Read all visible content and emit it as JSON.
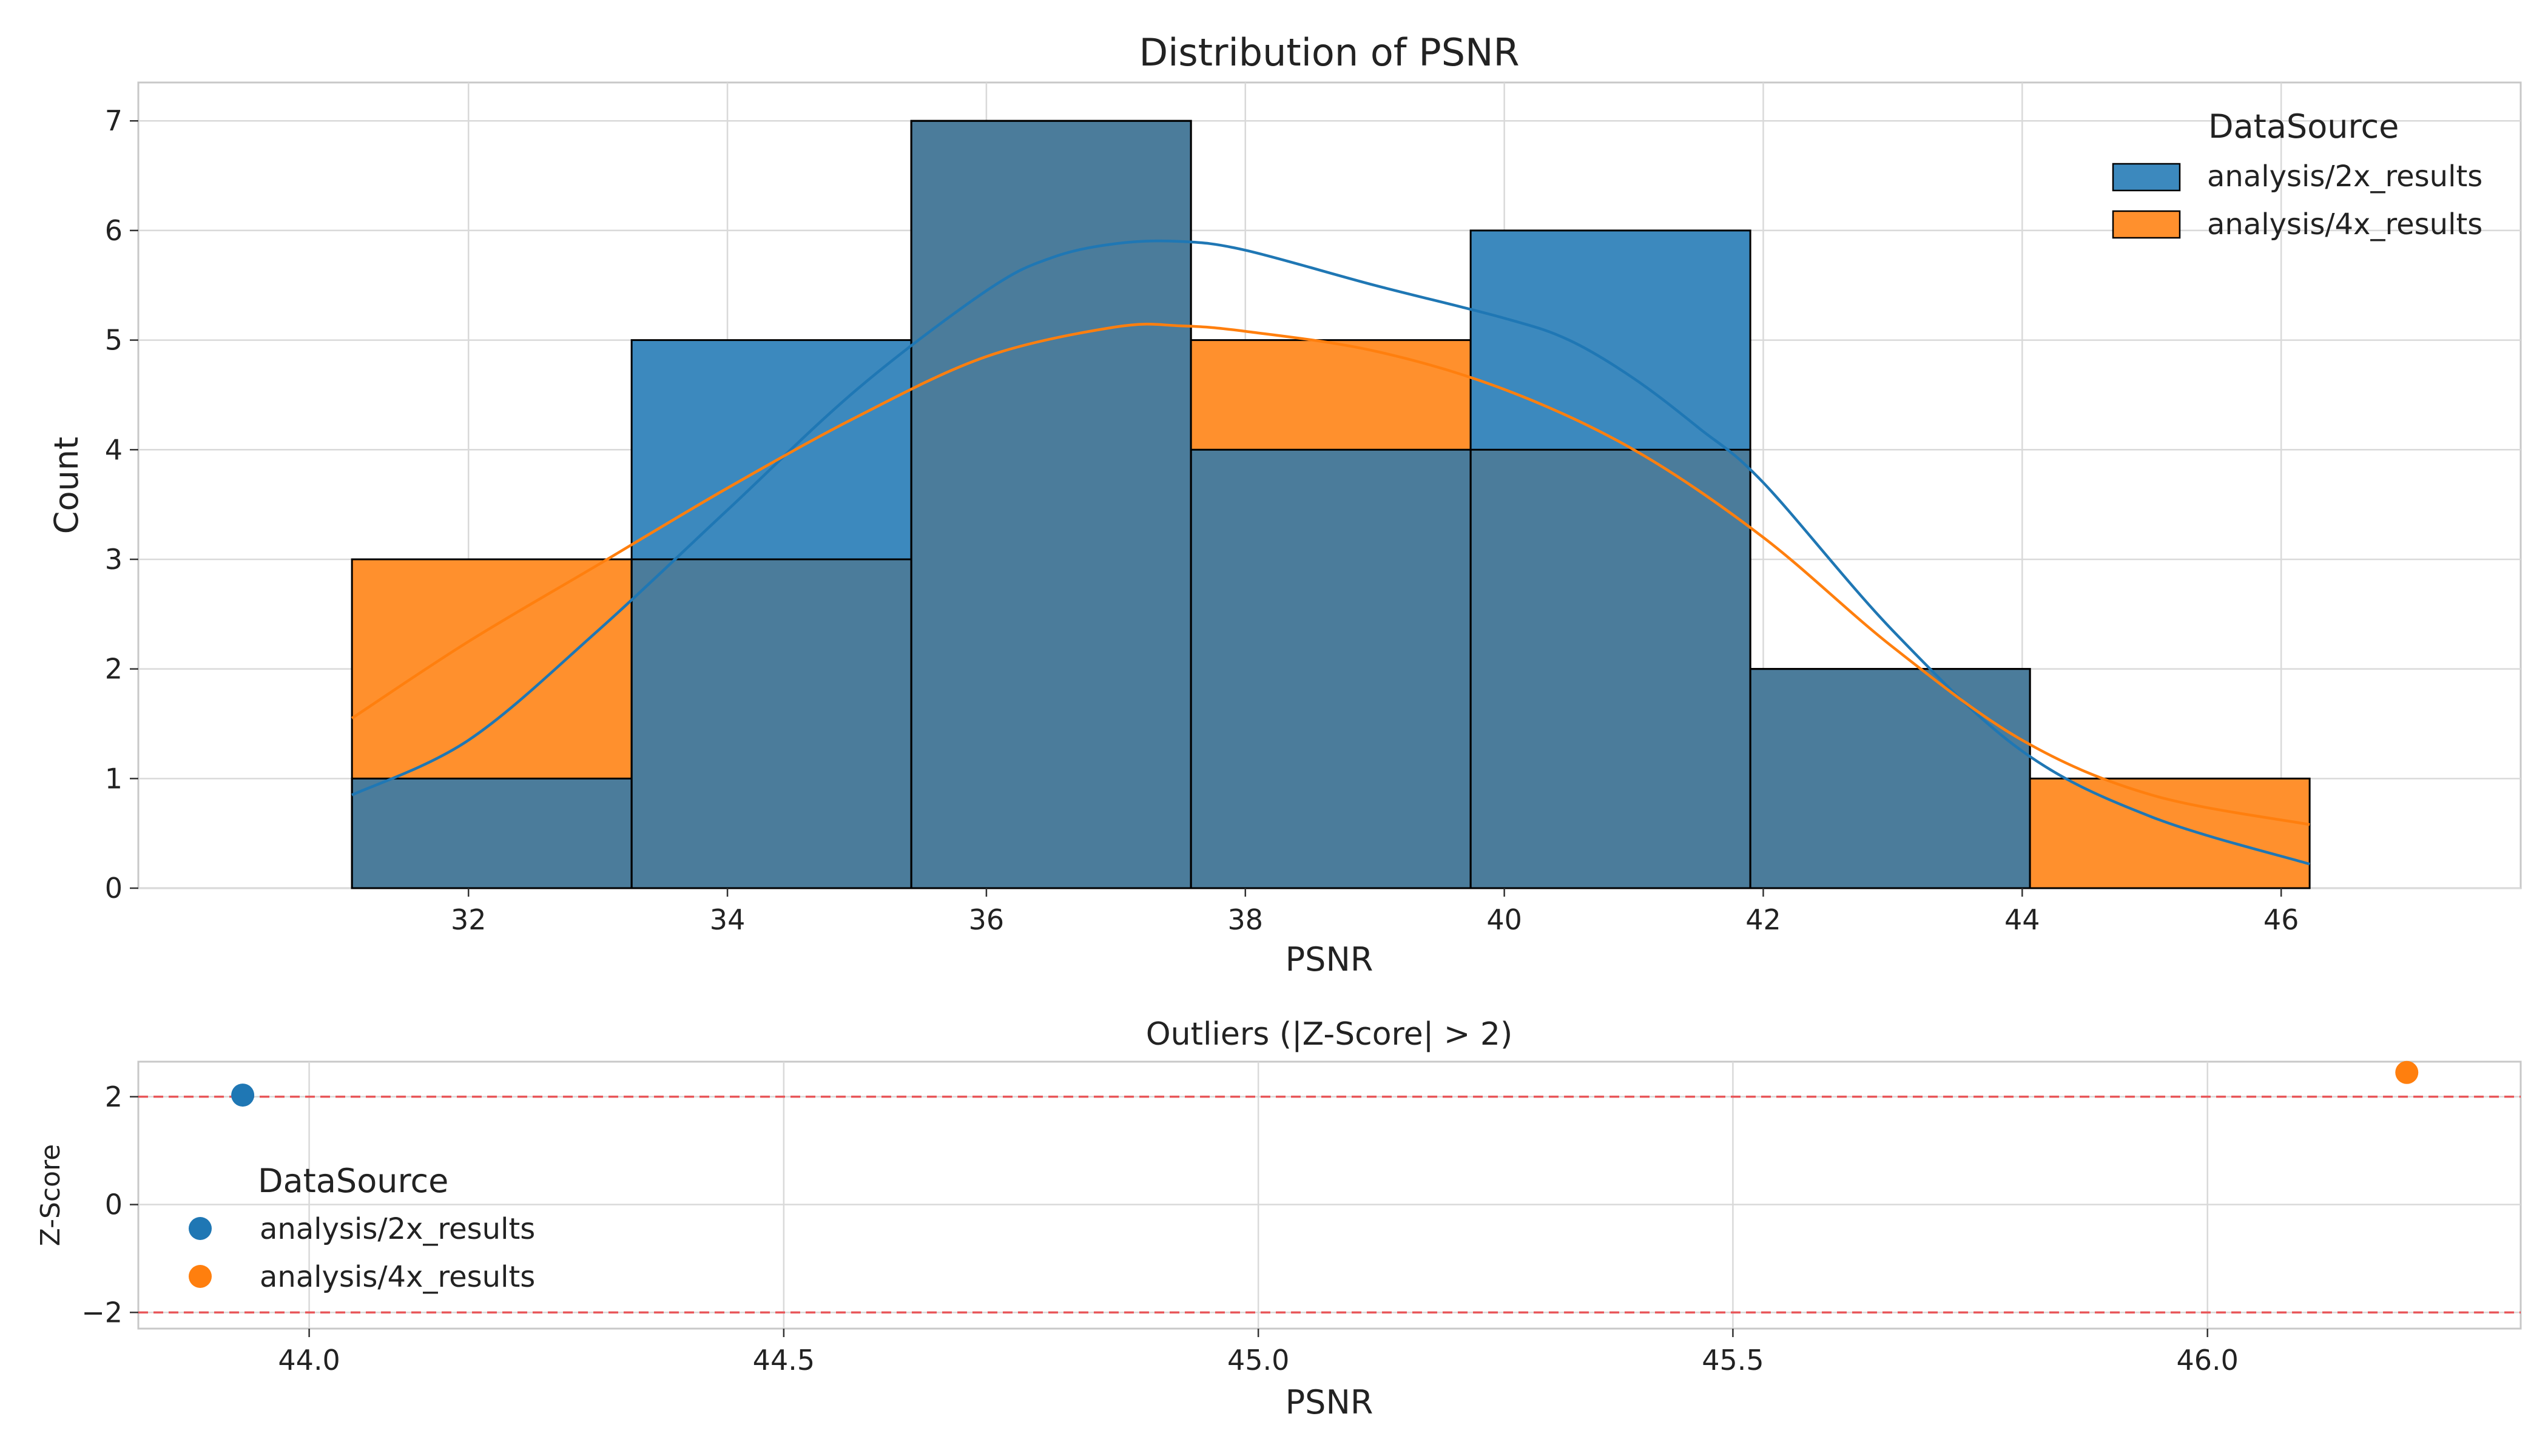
{
  "chart_data": [
    {
      "type": "bar",
      "subtype": "histogram-with-kde",
      "title": "Distribution of PSNR",
      "xlabel": "PSNR",
      "ylabel": "Count",
      "xlim": [
        29.45,
        47.85
      ],
      "ylim": [
        0,
        7.35
      ],
      "xticks": [
        32,
        34,
        36,
        38,
        40,
        42,
        44,
        46
      ],
      "yticks": [
        0,
        1,
        2,
        3,
        4,
        5,
        6,
        7
      ],
      "grid": true,
      "bin_edges": [
        31.1,
        33.26,
        35.42,
        37.58,
        39.74,
        41.9,
        44.06,
        46.22
      ],
      "legend": {
        "title": "DataSource",
        "placement": "upper right"
      },
      "series": [
        {
          "name": "analysis/2x_results",
          "color": "#1f77b4",
          "counts": [
            1,
            5,
            7,
            4,
            6,
            2,
            0
          ],
          "kde": {
            "x": [
              31.1,
              32.0,
              33.0,
              34.0,
              35.0,
              36.0,
              36.5,
              37.0,
              37.5,
              38.0,
              39.0,
              40.0,
              40.5,
              41.0,
              41.5,
              42.0,
              43.0,
              44.0,
              45.0,
              46.22
            ],
            "y": [
              0.85,
              1.35,
              2.35,
              3.45,
              4.55,
              5.45,
              5.75,
              5.88,
              5.9,
              5.82,
              5.5,
              5.2,
              5.0,
              4.65,
              4.2,
              3.7,
              2.35,
              1.25,
              0.65,
              0.22
            ]
          }
        },
        {
          "name": "analysis/4x_results",
          "color": "#ff7f0e",
          "counts": [
            3,
            3,
            7,
            5,
            4,
            2,
            1
          ],
          "kde": {
            "x": [
              31.1,
              32.0,
              33.0,
              34.0,
              35.0,
              36.0,
              37.0,
              37.5,
              38.0,
              39.0,
              40.0,
              41.0,
              42.0,
              43.0,
              44.0,
              45.0,
              46.22
            ],
            "y": [
              1.55,
              2.25,
              2.95,
              3.65,
              4.3,
              4.85,
              5.12,
              5.13,
              5.08,
              4.9,
              4.55,
              4.0,
              3.2,
              2.2,
              1.35,
              0.85,
              0.58
            ]
          }
        }
      ]
    },
    {
      "type": "scatter",
      "title": "Outliers (|Z-Score| > 2)",
      "xlabel": "PSNR",
      "ylabel": "Z-Score",
      "xlim": [
        43.82,
        46.33
      ],
      "ylim": [
        -2.3,
        2.65
      ],
      "xticks": [
        "44.0",
        "44.5",
        "45.0",
        "45.5",
        "46.0"
      ],
      "yticks": [
        "2",
        "0",
        "−2"
      ],
      "grid": true,
      "threshold_lines": {
        "values": [
          2,
          -2
        ],
        "color": "#e8575a",
        "style": "dashed"
      },
      "legend": {
        "title": "DataSource",
        "placement": "center left"
      },
      "series": [
        {
          "name": "analysis/2x_results",
          "color": "#1f77b4",
          "points": [
            [
              43.93,
              2.03
            ]
          ]
        },
        {
          "name": "analysis/4x_results",
          "color": "#ff7f0e",
          "points": [
            [
              46.21,
              2.45
            ]
          ]
        }
      ]
    }
  ]
}
